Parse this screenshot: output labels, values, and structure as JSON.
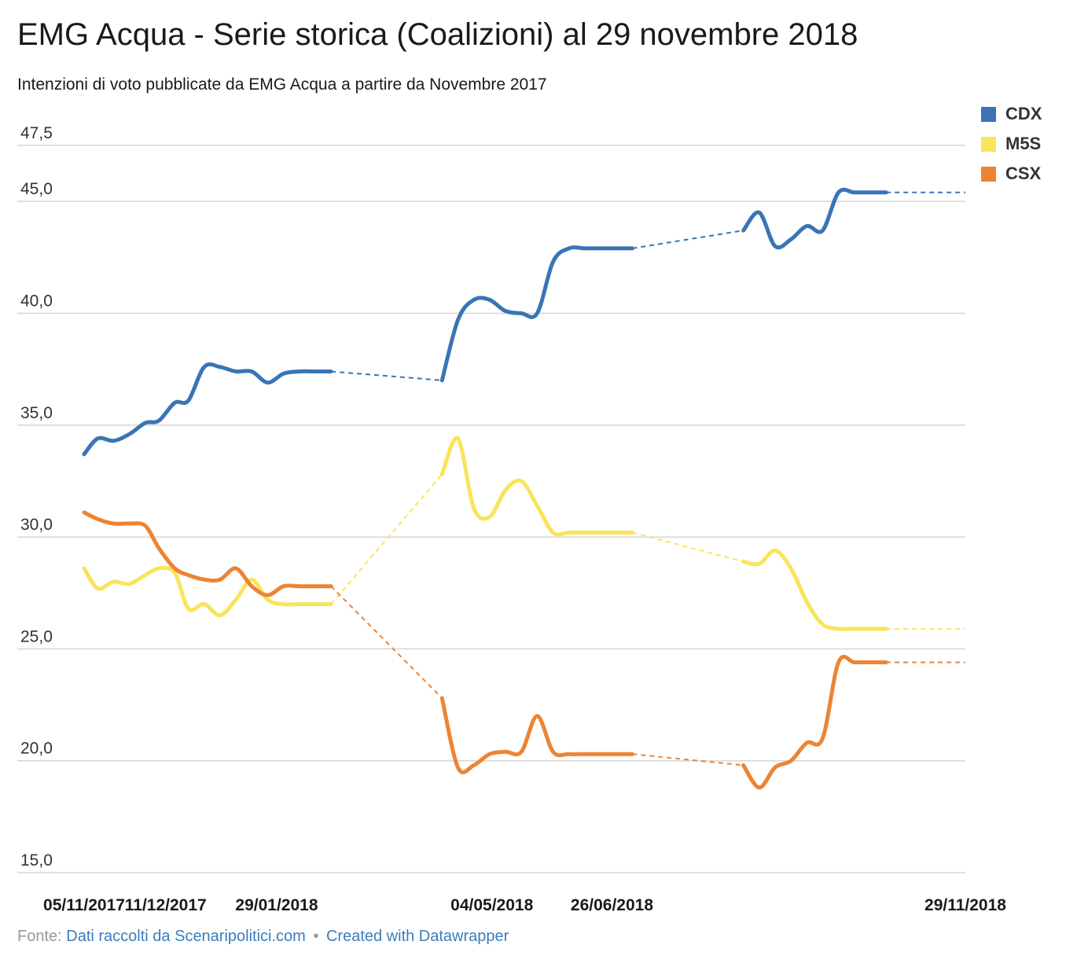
{
  "title": "EMG Acqua - Serie storica (Coalizioni) al 29 novembre 2018",
  "subtitle": "Intenzioni di voto pubblicate da EMG Acqua a partire da Novembre 2017",
  "footer": {
    "prefix": "Fonte:",
    "source": "Dati raccolti da Scenaripolitici.com",
    "separator": "•",
    "created": "Created with Datawrapper"
  },
  "colors": {
    "CDX": "#3a74b5",
    "M5S": "#f9e45a",
    "CSX": "#ec8434",
    "grid": "#d6d6d6"
  },
  "chart_data": {
    "type": "line",
    "ylim": [
      15,
      47.5
    ],
    "y_ticks": [
      {
        "value": 47.5,
        "label": "47,5"
      },
      {
        "value": 45,
        "label": "45,0"
      },
      {
        "value": 40,
        "label": "40,0"
      },
      {
        "value": 35,
        "label": "35,0"
      },
      {
        "value": 30,
        "label": "30,0"
      },
      {
        "value": 25,
        "label": "25,0"
      },
      {
        "value": 20,
        "label": "20,0"
      },
      {
        "value": 15,
        "label": "15,0"
      }
    ],
    "x_ticks": [
      "05/11/2017",
      "11/12/2017",
      "29/01/2018",
      "04/05/2018",
      "26/06/2018",
      "29/11/2018"
    ],
    "x": [
      "05/11/2017",
      "11/11/2017",
      "18/11/2017",
      "25/11/2017",
      "02/12/2017",
      "08/12/2017",
      "15/12/2017",
      "21/12/2017",
      "28/12/2017",
      "04/01/2018",
      "11/01/2018",
      "18/01/2018",
      "25/01/2018",
      "01/02/2018",
      "08/02/2018",
      "15/02/2018",
      "22/02/2018",
      "12/04/2018",
      "19/04/2018",
      "26/04/2018",
      "03/05/2018",
      "10/05/2018",
      "17/05/2018",
      "24/05/2018",
      "31/05/2018",
      "07/06/2018",
      "14/06/2018",
      "21/06/2018",
      "28/06/2018",
      "05/07/2018",
      "23/08/2018",
      "30/08/2018",
      "06/09/2018",
      "13/09/2018",
      "20/09/2018",
      "27/09/2018",
      "04/10/2018",
      "11/10/2018",
      "18/10/2018",
      "25/10/2018",
      "29/11/2018"
    ],
    "legend": [
      "CDX",
      "M5S",
      "CSX"
    ],
    "series": [
      {
        "name": "CDX",
        "values": [
          33.7,
          34.4,
          34.3,
          34.6,
          35.1,
          35.2,
          36.0,
          36.1,
          37.6,
          37.6,
          37.4,
          37.4,
          36.9,
          37.3,
          37.4,
          37.4,
          37.4,
          37.0,
          39.7,
          40.6,
          40.6,
          40.1,
          40.0,
          40.0,
          42.3,
          42.9,
          42.9,
          42.9,
          42.9,
          42.9,
          43.7,
          44.5,
          43.0,
          43.3,
          43.9,
          43.7,
          45.4,
          45.4,
          45.4,
          45.4,
          45.4
        ]
      },
      {
        "name": "M5S",
        "values": [
          28.6,
          27.7,
          28.0,
          27.9,
          28.3,
          28.6,
          28.4,
          26.8,
          27.0,
          26.5,
          27.2,
          28.1,
          27.2,
          27.0,
          27.0,
          27.0,
          27.0,
          32.8,
          34.4,
          31.3,
          30.9,
          32.1,
          32.5,
          31.4,
          30.2,
          30.2,
          30.2,
          30.2,
          30.2,
          30.2,
          28.9,
          28.8,
          29.4,
          28.6,
          27.1,
          26.1,
          25.9,
          25.9,
          25.9,
          25.9,
          25.9
        ]
      },
      {
        "name": "CSX",
        "values": [
          31.1,
          30.8,
          30.6,
          30.6,
          30.5,
          29.5,
          28.6,
          28.3,
          28.1,
          28.1,
          28.6,
          27.8,
          27.4,
          27.8,
          27.8,
          27.8,
          27.8,
          22.8,
          19.7,
          19.8,
          20.3,
          20.4,
          20.4,
          22.0,
          20.4,
          20.3,
          20.3,
          20.3,
          20.3,
          20.3,
          19.8,
          18.8,
          19.7,
          20.0,
          20.8,
          21.0,
          24.4,
          24.4,
          24.4,
          24.4,
          24.4
        ]
      }
    ],
    "grid": true,
    "legend_position": "top-right"
  }
}
